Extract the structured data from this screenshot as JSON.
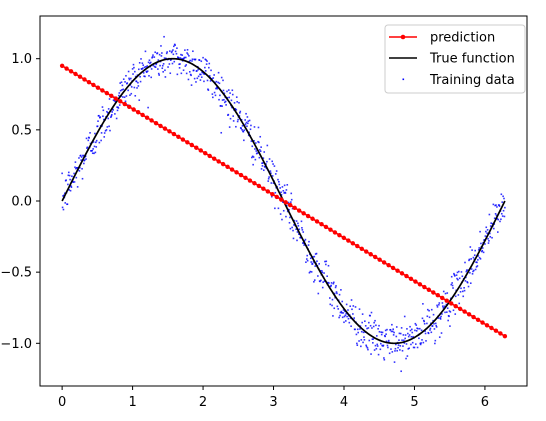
{
  "chart_data": {
    "type": "scatter",
    "xlim": [
      -0.314,
      6.597
    ],
    "ylim": [
      -1.3,
      1.3
    ],
    "x_ticks": [
      0,
      1,
      2,
      3,
      4,
      5,
      6
    ],
    "y_ticks": [
      -1.0,
      -0.5,
      0.0,
      0.5,
      1.0
    ],
    "x_tick_labels": [
      "0",
      "1",
      "2",
      "3",
      "4",
      "5",
      "6"
    ],
    "y_tick_labels": [
      "−1.0",
      "−0.5",
      "0.0",
      "0.5",
      "1.0"
    ],
    "grid": false,
    "legend_position": "top-right",
    "series": [
      {
        "name": "prediction",
        "kind": "line-markers",
        "color": "#ff0000",
        "x_start": 0,
        "x_end": 6.2832,
        "y_start": 0.95,
        "y_end": -0.95,
        "n_points": 100
      },
      {
        "name": "True function",
        "kind": "line",
        "color": "#000000",
        "function": "sin(x)",
        "x_start": 0,
        "x_end": 6.2832
      },
      {
        "name": "Training data",
        "kind": "scatter",
        "color": "#0000ff",
        "function": "sin(x) + noise",
        "noise_std": 0.07,
        "x_start": 0,
        "x_end": 6.2832,
        "n_points": 1000
      }
    ]
  },
  "legend": {
    "items": [
      {
        "label": "prediction"
      },
      {
        "label": "True function"
      },
      {
        "label": "Training data"
      }
    ]
  }
}
